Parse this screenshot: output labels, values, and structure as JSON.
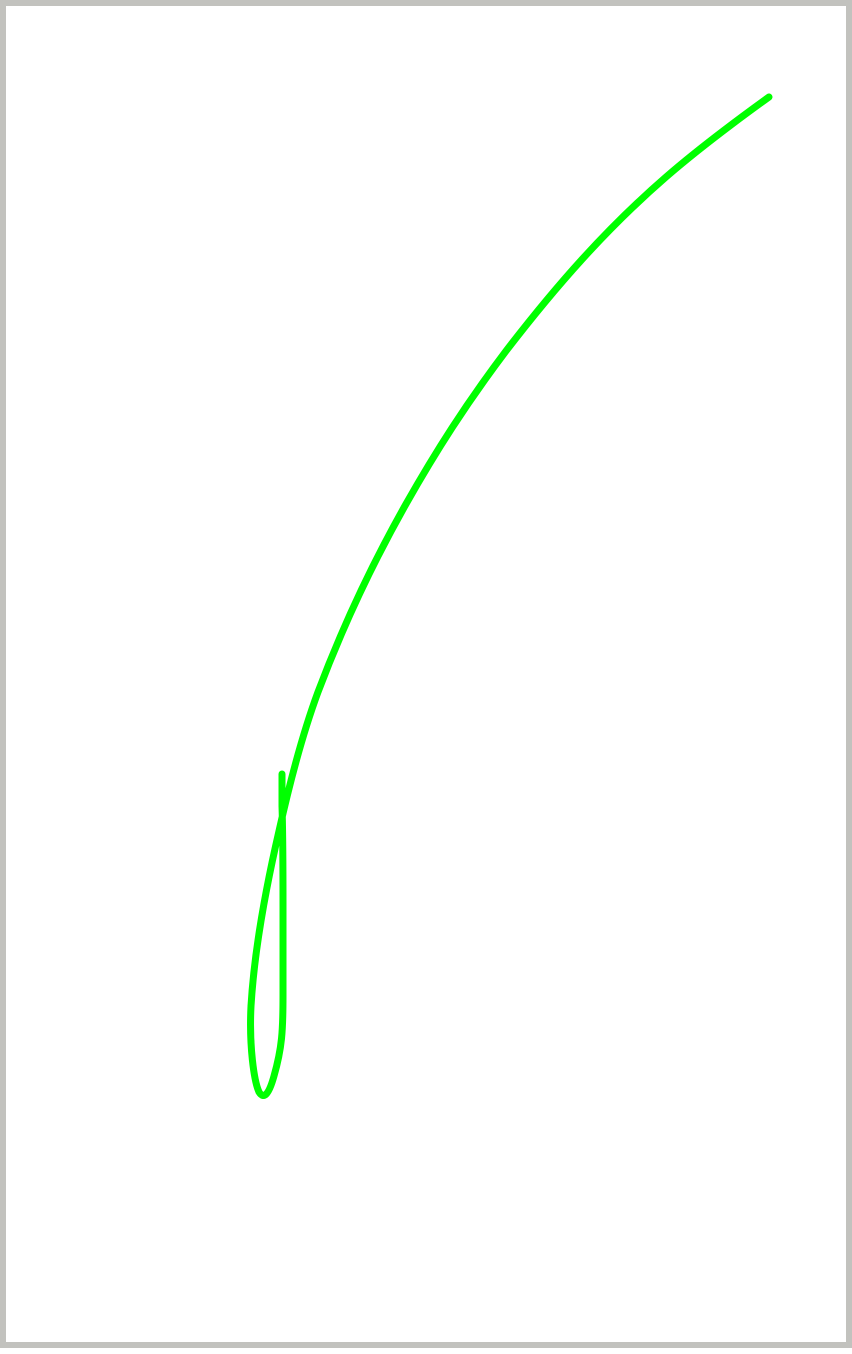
{
  "canvas": {
    "background_color": "#ffffff",
    "border_color": "#c2c2be",
    "stroke_color": "#00ff00"
  }
}
